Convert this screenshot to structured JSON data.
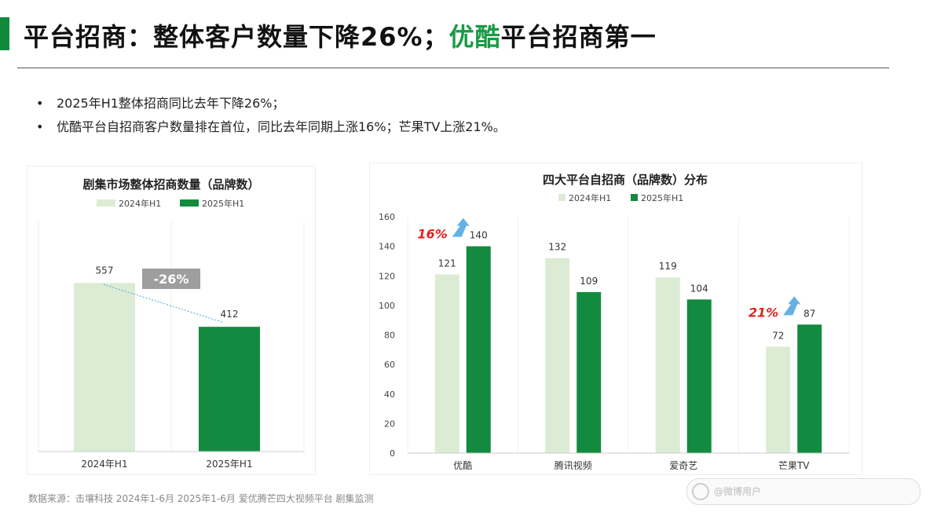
{
  "header": {
    "title_main": "平台招商：整体客户数量下降26%；",
    "title_highlight": "优酷",
    "title_tail": "平台招商第一"
  },
  "bullets": [
    "2025年H1整体招商同比去年下降26%；",
    "优酷平台自招商客户数量排在首位，同比去年同期上涨16%；芒果TV上涨21%。"
  ],
  "bullet_symbol": "•",
  "colors": {
    "light": "#dcecd4",
    "dark": "#128b40",
    "accent_red": "#e02020",
    "title_green": "#1a9a45"
  },
  "chart_data": [
    {
      "type": "bar",
      "title": "剧集市场整体招商数量（品牌数）",
      "categories": [
        "2024年H1",
        "2025年H1"
      ],
      "values": [
        557,
        412
      ],
      "legend": [
        "2024年H1",
        "2025年H1"
      ],
      "legend_position": "top",
      "annotation": "-26%",
      "ylim": [
        0,
        760
      ],
      "grid": true
    },
    {
      "type": "bar",
      "title": "四大平台自招商（品牌数）分布",
      "categories": [
        "优酷",
        "腾讯视频",
        "爱奇艺",
        "芒果TV"
      ],
      "series": [
        {
          "name": "2024年H1",
          "values": [
            121,
            132,
            119,
            72
          ]
        },
        {
          "name": "2025年H1",
          "values": [
            140,
            109,
            104,
            87
          ]
        }
      ],
      "yticks": [
        0,
        20,
        40,
        60,
        80,
        100,
        120,
        140,
        160
      ],
      "ylim": [
        0,
        160
      ],
      "legend_position": "top",
      "annotations": [
        {
          "category": "优酷",
          "text": "16%"
        },
        {
          "category": "芒果TV",
          "text": "21%"
        }
      ],
      "grid": true
    }
  ],
  "footer": "数据来源：击壤科技 2024年1-6月 2025年1-6月 爱优腾芒四大视频平台 剧集监测",
  "watermark": "@微博用户"
}
